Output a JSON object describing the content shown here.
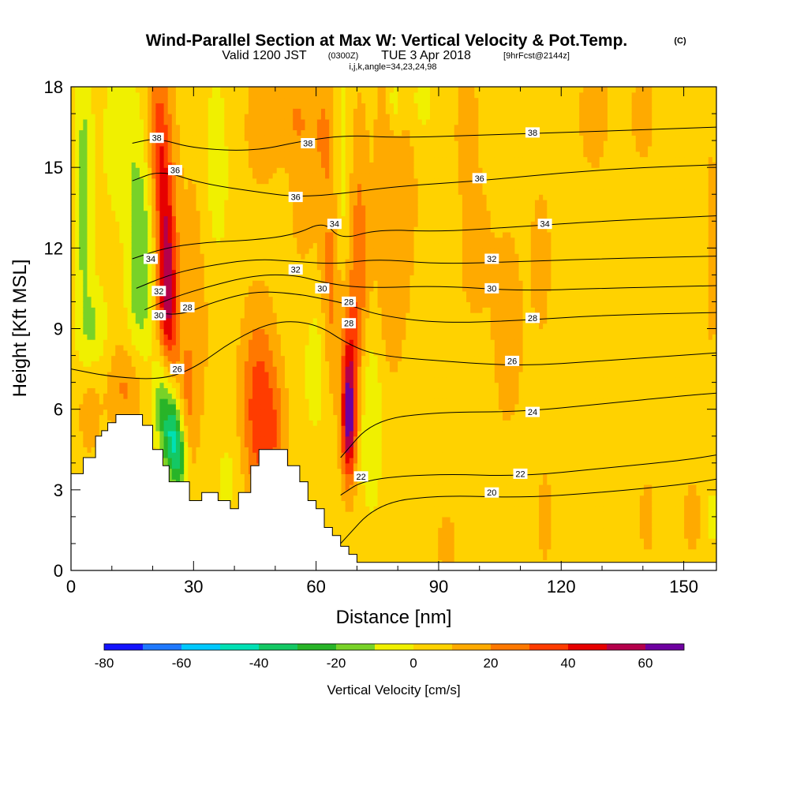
{
  "title": {
    "main": "Wind-Parallel Section at Max W: Vertical Velocity & Pot.Temp.",
    "main_suffix": "(C)",
    "valid_prefix": "Valid 1200 JST",
    "valid_utc": "(0300Z)",
    "valid_date": "TUE 3 Apr 2018",
    "forecast": "[9hrFcst@2144z]",
    "indices": "i,j,k,angle=34,23,24,98"
  },
  "chart_data": {
    "type": "heatmap",
    "xlabel": "Distance [nm]",
    "ylabel": "Height [Kft MSL]",
    "xlim": [
      0,
      158
    ],
    "ylim": [
      0,
      18
    ],
    "x_ticks": [
      0,
      30,
      60,
      90,
      120,
      150
    ],
    "x_tick_labels": [
      "0",
      "30",
      "60",
      "90",
      "120",
      "150"
    ],
    "y_ticks": [
      0,
      3,
      6,
      9,
      12,
      15,
      18
    ],
    "y_tick_labels": [
      "0",
      "3",
      "6",
      "9",
      "12",
      "15",
      "18"
    ],
    "colorbar": {
      "label": "Vertical Velocity [cm/s]",
      "levels": [
        -80,
        -70,
        -60,
        -50,
        -40,
        -30,
        -20,
        -10,
        0,
        10,
        20,
        30,
        40,
        50,
        60,
        70
      ],
      "colors": [
        "#1414ff",
        "#1e78ff",
        "#00c8ff",
        "#00e0b4",
        "#14c864",
        "#28b428",
        "#78d228",
        "#f0f000",
        "#ffd200",
        "#ffaa00",
        "#ff7800",
        "#ff3c00",
        "#e60000",
        "#b4004b",
        "#6e00a0"
      ],
      "tick_values": [
        -80,
        -60,
        -40,
        -20,
        0,
        20,
        40,
        60
      ],
      "tick_labels": [
        "-80",
        "-60",
        "-40",
        "-20",
        "0",
        "20",
        "40",
        "60"
      ]
    },
    "background_value": 5,
    "features": [
      {
        "x": 3,
        "y": 14,
        "sx": 1.5,
        "sy": 5,
        "value": -18
      },
      {
        "x": 4,
        "y": 6,
        "sx": 2,
        "sy": 1.3,
        "value": 14
      },
      {
        "x": 6,
        "y": 9,
        "sx": 2,
        "sy": 1.2,
        "value": -15
      },
      {
        "x": 12,
        "y": 16,
        "sx": 3,
        "sy": 2,
        "value": -12
      },
      {
        "x": 14,
        "y": 6.8,
        "sx": 3.5,
        "sy": 1.2,
        "value": 18
      },
      {
        "x": 17,
        "y": 11.5,
        "sx": 2.3,
        "sy": 3,
        "value": -25
      },
      {
        "x": 21,
        "y": 16.5,
        "sx": 1.8,
        "sy": 1.8,
        "value": 22
      },
      {
        "x": 23,
        "y": 12.5,
        "sx": 1.8,
        "sy": 3,
        "value": 38
      },
      {
        "x": 24,
        "y": 9.5,
        "sx": 1.6,
        "sy": 2.2,
        "value": 30
      },
      {
        "x": 22.5,
        "y": 6.5,
        "sx": 1.6,
        "sy": 1.5,
        "value": -32
      },
      {
        "x": 25,
        "y": 5,
        "sx": 1.5,
        "sy": 1.2,
        "value": -45
      },
      {
        "x": 27,
        "y": 4,
        "sx": 1.2,
        "sy": 1,
        "value": -25
      },
      {
        "x": 28.5,
        "y": 6.5,
        "sx": 1.8,
        "sy": 2,
        "value": 16
      },
      {
        "x": 32,
        "y": 12,
        "sx": 3.5,
        "sy": 4,
        "value": 10
      },
      {
        "x": 35,
        "y": 14.5,
        "sx": 2.5,
        "sy": 3,
        "value": -15
      },
      {
        "x": 38.5,
        "y": 3.5,
        "sx": 2.5,
        "sy": 1.2,
        "value": -8
      },
      {
        "x": 46,
        "y": 6,
        "sx": 3,
        "sy": 2.5,
        "value": 32
      },
      {
        "x": 50,
        "y": 5,
        "sx": 2,
        "sy": 1.5,
        "value": 14
      },
      {
        "x": 47,
        "y": 16.5,
        "sx": 3,
        "sy": 1.5,
        "value": 13
      },
      {
        "x": 55,
        "y": 17,
        "sx": 3,
        "sy": 1.2,
        "value": 13
      },
      {
        "x": 57,
        "y": 14,
        "sx": 2.5,
        "sy": 2,
        "value": 10
      },
      {
        "x": 60,
        "y": 7.5,
        "sx": 1.8,
        "sy": 1.5,
        "value": -14
      },
      {
        "x": 62,
        "y": 16.5,
        "sx": 2,
        "sy": 1.8,
        "value": 14
      },
      {
        "x": 64,
        "y": 11,
        "sx": 1.8,
        "sy": 3,
        "value": 22
      },
      {
        "x": 66,
        "y": 13.5,
        "sx": 1.6,
        "sy": 4,
        "value": -14
      },
      {
        "x": 68,
        "y": 5.5,
        "sx": 1.2,
        "sy": 1.5,
        "value": 55
      },
      {
        "x": 68,
        "y": 8,
        "sx": 1.5,
        "sy": 1.8,
        "value": 25
      },
      {
        "x": 70.5,
        "y": 11,
        "sx": 1.8,
        "sy": 4,
        "value": 22
      },
      {
        "x": 73,
        "y": 6,
        "sx": 2.2,
        "sy": 2.5,
        "value": -18
      },
      {
        "x": 77,
        "y": 16,
        "sx": 1.8,
        "sy": 2.5,
        "value": 11
      },
      {
        "x": 78,
        "y": 10,
        "sx": 3,
        "sy": 2.5,
        "value": 10
      },
      {
        "x": 82,
        "y": 14,
        "sx": 2.5,
        "sy": 2.5,
        "value": 8
      },
      {
        "x": 79,
        "y": 17.5,
        "sx": 1.2,
        "sy": 0.8,
        "value": -14
      },
      {
        "x": 86,
        "y": 17.5,
        "sx": 1.5,
        "sy": 0.8,
        "value": -12
      },
      {
        "x": 92,
        "y": 1,
        "sx": 1.5,
        "sy": 0.8,
        "value": 12
      },
      {
        "x": 97,
        "y": 16.5,
        "sx": 2,
        "sy": 1.5,
        "value": 12
      },
      {
        "x": 99,
        "y": 12,
        "sx": 3,
        "sy": 2,
        "value": 10
      },
      {
        "x": 107,
        "y": 9,
        "sx": 2.5,
        "sy": 2.5,
        "value": 13
      },
      {
        "x": 115,
        "y": 11.5,
        "sx": 1.8,
        "sy": 2,
        "value": 11
      },
      {
        "x": 116,
        "y": 2,
        "sx": 1.2,
        "sy": 1.2,
        "value": 11
      },
      {
        "x": 128,
        "y": 17,
        "sx": 2.5,
        "sy": 1.5,
        "value": 12
      },
      {
        "x": 140,
        "y": 17,
        "sx": 2,
        "sy": 1.2,
        "value": 12
      },
      {
        "x": 141,
        "y": 2,
        "sx": 1.3,
        "sy": 1,
        "value": 11
      },
      {
        "x": 152,
        "y": 2,
        "sx": 1.5,
        "sy": 1,
        "value": 11
      },
      {
        "x": 157,
        "y": 12,
        "sx": 1.2,
        "sy": 3,
        "value": 10
      },
      {
        "x": 157,
        "y": 2,
        "sx": 0.8,
        "sy": 0.8,
        "value": -10
      }
    ],
    "terrain": [
      [
        0,
        3.6
      ],
      [
        3,
        3.6
      ],
      [
        3,
        4.2
      ],
      [
        6,
        4.2
      ],
      [
        6,
        5
      ],
      [
        7.5,
        5
      ],
      [
        7.5,
        5.2
      ],
      [
        9,
        5.2
      ],
      [
        9,
        5.5
      ],
      [
        11,
        5.5
      ],
      [
        11,
        5.8
      ],
      [
        17.5,
        5.8
      ],
      [
        17.5,
        5.4
      ],
      [
        20,
        5.4
      ],
      [
        20,
        4.5
      ],
      [
        22.5,
        4.5
      ],
      [
        22.5,
        3.9
      ],
      [
        24,
        3.9
      ],
      [
        24,
        3.3
      ],
      [
        29,
        3.3
      ],
      [
        29,
        2.6
      ],
      [
        32,
        2.6
      ],
      [
        32,
        2.9
      ],
      [
        36,
        2.9
      ],
      [
        36,
        2.6
      ],
      [
        39,
        2.6
      ],
      [
        39,
        2.3
      ],
      [
        41,
        2.3
      ],
      [
        41,
        2.9
      ],
      [
        44,
        2.9
      ],
      [
        44,
        3.9
      ],
      [
        46,
        3.9
      ],
      [
        46,
        4.5
      ],
      [
        53,
        4.5
      ],
      [
        53,
        3.9
      ],
      [
        56,
        3.9
      ],
      [
        56,
        3.3
      ],
      [
        58,
        3.3
      ],
      [
        58,
        2.6
      ],
      [
        60,
        2.6
      ],
      [
        60,
        2.3
      ],
      [
        62,
        2.3
      ],
      [
        62,
        1.6
      ],
      [
        64,
        1.6
      ],
      [
        64,
        1.3
      ],
      [
        66,
        1.3
      ],
      [
        66,
        0.9
      ],
      [
        68,
        0.9
      ],
      [
        68,
        0.6
      ],
      [
        70,
        0.6
      ],
      [
        70,
        0.3
      ],
      [
        158,
        0.3
      ],
      [
        158,
        0
      ],
      [
        0,
        0
      ]
    ],
    "theta_contours": [
      {
        "value": 20,
        "points": [
          [
            66,
            1
          ],
          [
            75,
            2.5
          ],
          [
            90,
            2.8
          ],
          [
            110,
            2.7
          ],
          [
            130,
            2.9
          ],
          [
            150,
            3.2
          ],
          [
            158,
            3.4
          ]
        ]
      },
      {
        "value": 22,
        "points": [
          [
            66,
            2.8
          ],
          [
            72,
            3.4
          ],
          [
            90,
            3.6
          ],
          [
            110,
            3.5
          ],
          [
            130,
            3.8
          ],
          [
            150,
            4.1
          ],
          [
            158,
            4.3
          ]
        ]
      },
      {
        "value": 24,
        "points": [
          [
            66,
            4.2
          ],
          [
            74,
            5.6
          ],
          [
            90,
            5.9
          ],
          [
            110,
            5.9
          ],
          [
            130,
            6.2
          ],
          [
            150,
            6.5
          ],
          [
            158,
            6.6
          ]
        ]
      },
      {
        "value": 26,
        "points": [
          [
            0,
            7.5
          ],
          [
            10,
            7.2
          ],
          [
            22,
            7.1
          ],
          [
            30,
            7.5
          ],
          [
            40,
            8.6
          ],
          [
            50,
            9.3
          ],
          [
            60,
            9.2
          ],
          [
            68,
            8.4
          ],
          [
            75,
            8
          ],
          [
            90,
            7.8
          ],
          [
            110,
            7.6
          ],
          [
            130,
            7.8
          ],
          [
            158,
            8.1
          ]
        ]
      },
      {
        "value": 28,
        "points": [
          [
            20,
            9.6
          ],
          [
            27,
            9.5
          ],
          [
            35,
            10
          ],
          [
            45,
            10.4
          ],
          [
            55,
            10.3
          ],
          [
            62,
            10.1
          ],
          [
            68,
            9.9
          ],
          [
            75,
            9.5
          ],
          [
            90,
            9.2
          ],
          [
            110,
            9.3
          ],
          [
            130,
            9.5
          ],
          [
            158,
            9.6
          ]
        ]
      },
      {
        "value": 30,
        "points": [
          [
            18,
            9.7
          ],
          [
            24,
            10.1
          ],
          [
            32,
            10.5
          ],
          [
            45,
            11
          ],
          [
            55,
            11
          ],
          [
            62,
            10.7
          ],
          [
            72,
            10.5
          ],
          [
            90,
            10.6
          ],
          [
            110,
            10.4
          ],
          [
            130,
            10.5
          ],
          [
            158,
            10.6
          ]
        ]
      },
      {
        "value": 32,
        "points": [
          [
            16,
            10.5
          ],
          [
            24,
            11
          ],
          [
            32,
            11.3
          ],
          [
            45,
            11.6
          ],
          [
            55,
            11.5
          ],
          [
            65,
            11.4
          ],
          [
            75,
            11.6
          ],
          [
            90,
            11.4
          ],
          [
            110,
            11.5
          ],
          [
            130,
            11.6
          ],
          [
            158,
            11.7
          ]
        ]
      },
      {
        "value": 34,
        "points": [
          [
            15,
            11.6
          ],
          [
            23,
            12
          ],
          [
            32,
            12.2
          ],
          [
            45,
            12.3
          ],
          [
            55,
            12.5
          ],
          [
            62,
            13
          ],
          [
            66,
            12.3
          ],
          [
            75,
            12.7
          ],
          [
            90,
            12.6
          ],
          [
            110,
            12.8
          ],
          [
            130,
            13
          ],
          [
            158,
            13.2
          ]
        ]
      },
      {
        "value": 36,
        "points": [
          [
            15,
            14.5
          ],
          [
            22,
            14.9
          ],
          [
            32,
            14.4
          ],
          [
            45,
            14.1
          ],
          [
            55,
            13.9
          ],
          [
            65,
            14
          ],
          [
            80,
            14.3
          ],
          [
            100,
            14.5
          ],
          [
            120,
            14.8
          ],
          [
            140,
            15
          ],
          [
            158,
            15.1
          ]
        ]
      },
      {
        "value": 38,
        "points": [
          [
            15,
            15.9
          ],
          [
            21,
            16.1
          ],
          [
            30,
            15.7
          ],
          [
            45,
            15.6
          ],
          [
            57,
            16
          ],
          [
            68,
            16.2
          ],
          [
            80,
            16.1
          ],
          [
            100,
            16.2
          ],
          [
            120,
            16.3
          ],
          [
            140,
            16.4
          ],
          [
            158,
            16.5
          ]
        ]
      }
    ],
    "contour_labels": [
      {
        "text": "38",
        "x": 21,
        "y": 16.1
      },
      {
        "text": "36",
        "x": 25.5,
        "y": 14.9
      },
      {
        "text": "34",
        "x": 19.5,
        "y": 11.6
      },
      {
        "text": "32",
        "x": 21.5,
        "y": 10.4
      },
      {
        "text": "30",
        "x": 21.5,
        "y": 9.5
      },
      {
        "text": "28",
        "x": 28.5,
        "y": 9.8
      },
      {
        "text": "26",
        "x": 26,
        "y": 7.5
      },
      {
        "text": "38",
        "x": 58,
        "y": 15.9
      },
      {
        "text": "36",
        "x": 55,
        "y": 13.9
      },
      {
        "text": "34",
        "x": 64.5,
        "y": 12.9
      },
      {
        "text": "32",
        "x": 55,
        "y": 11.2
      },
      {
        "text": "30",
        "x": 61.5,
        "y": 10.5
      },
      {
        "text": "28",
        "x": 68,
        "y": 10
      },
      {
        "text": "28",
        "x": 68,
        "y": 9.2
      },
      {
        "text": "22",
        "x": 71,
        "y": 3.5
      },
      {
        "text": "38",
        "x": 113,
        "y": 16.3
      },
      {
        "text": "36",
        "x": 100,
        "y": 14.6
      },
      {
        "text": "34",
        "x": 116,
        "y": 12.9
      },
      {
        "text": "32",
        "x": 103,
        "y": 11.6
      },
      {
        "text": "30",
        "x": 103,
        "y": 10.5
      },
      {
        "text": "28",
        "x": 113,
        "y": 9.4
      },
      {
        "text": "26",
        "x": 108,
        "y": 7.8
      },
      {
        "text": "24",
        "x": 113,
        "y": 5.9
      },
      {
        "text": "22",
        "x": 110,
        "y": 3.6
      },
      {
        "text": "20",
        "x": 103,
        "y": 2.9
      }
    ]
  }
}
